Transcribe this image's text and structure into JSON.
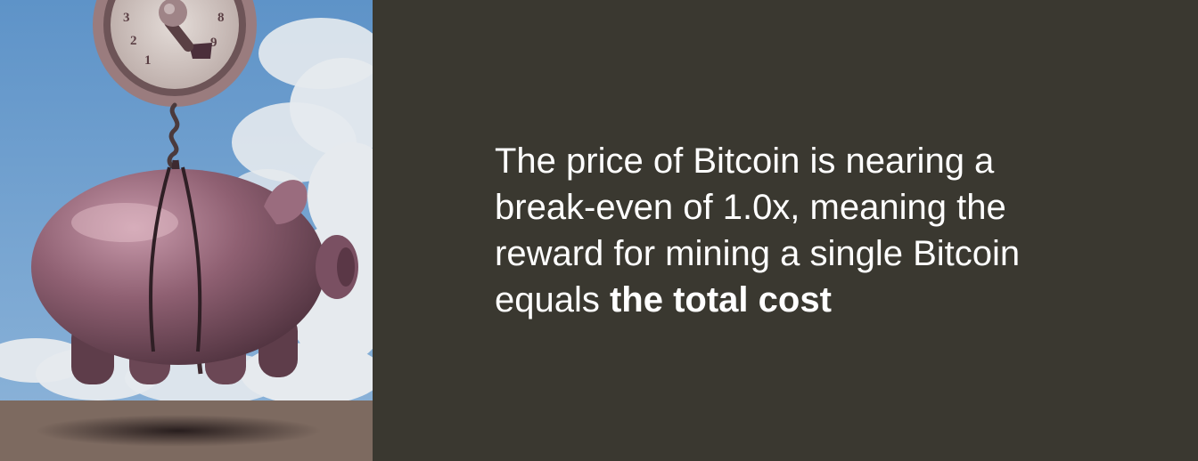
{
  "message": {
    "line1": "The price of Bitcoin is nearing a",
    "line2": "break-even of 1.0x, meaning the",
    "line3": "reward for mining a single Bitcoin",
    "line4_prefix": "equals ",
    "line4_emphasis": "the total cost"
  },
  "illustration": {
    "dial_numbers": [
      "3",
      "2",
      "1",
      "8",
      "9"
    ],
    "colors": {
      "background": "#3a3830",
      "sky": "#6f9fcf",
      "cloud": "#e7ebef",
      "ground": "#7d6a60",
      "pig": "#8a5e6e",
      "scale_frame": "#9a7c7e",
      "text": "#ffffff"
    }
  }
}
